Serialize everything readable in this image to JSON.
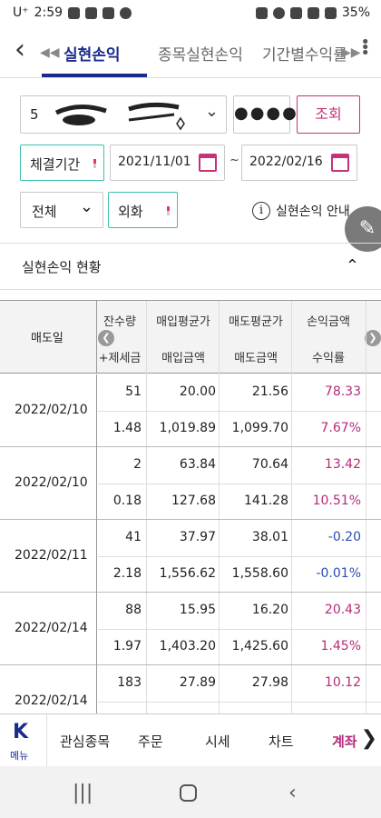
{
  "status": {
    "carrier": "U⁺",
    "time": "2:59",
    "battery": "35%"
  },
  "header": {
    "tabs": [
      {
        "label": "실현손익"
      },
      {
        "label": "종목실현손익"
      },
      {
        "label": "기간별수익률"
      }
    ]
  },
  "filters": {
    "account_prefix": "5",
    "password": "●●●●",
    "query_label": "조회",
    "period_label": "체결기간",
    "start_date": "2021/11/01",
    "end_date": "2022/02/16",
    "date_sep": "~",
    "type_select": "전체",
    "currency_label": "외화",
    "info_label": "실현손익 안내"
  },
  "section": {
    "title": "실현손익 현황"
  },
  "table": {
    "date_header": "매도일",
    "headers_top": [
      "잔수량",
      "매입평균가",
      "매도평균가",
      "손익금액"
    ],
    "headers_bottom": [
      "+제세금",
      "매입금액",
      "매도금액",
      "수익률"
    ],
    "rows": [
      {
        "date": "2022/02/10",
        "top": [
          "51",
          "20.00",
          "21.56",
          "78.33"
        ],
        "bottom": [
          "1.48",
          "1,019.89",
          "1,099.70",
          "7.67%"
        ],
        "sign": "pos"
      },
      {
        "date": "2022/02/10",
        "top": [
          "2",
          "63.84",
          "70.64",
          "13.42"
        ],
        "bottom": [
          "0.18",
          "127.68",
          "141.28",
          "10.51%"
        ],
        "sign": "pos"
      },
      {
        "date": "2022/02/11",
        "top": [
          "41",
          "37.97",
          "38.01",
          "-0.20"
        ],
        "bottom": [
          "2.18",
          "1,556.62",
          "1,558.60",
          "-0.01%"
        ],
        "sign": "neg"
      },
      {
        "date": "2022/02/14",
        "top": [
          "88",
          "15.95",
          "16.20",
          "20.43"
        ],
        "bottom": [
          "1.97",
          "1,403.20",
          "1,425.60",
          "1.45%"
        ],
        "sign": "pos"
      },
      {
        "date": "2022/02/14",
        "top": [
          "183",
          "27.89",
          "27.98",
          "10.12"
        ],
        "bottom": [
          "",
          "",
          "",
          ""
        ],
        "sign": "pos"
      }
    ]
  },
  "menu": {
    "logo": "K",
    "logo_label": "메뉴",
    "items": [
      {
        "label": "관심종목"
      },
      {
        "label": "주문"
      },
      {
        "label": "시세"
      },
      {
        "label": "차트"
      },
      {
        "label": "계좌"
      }
    ]
  }
}
